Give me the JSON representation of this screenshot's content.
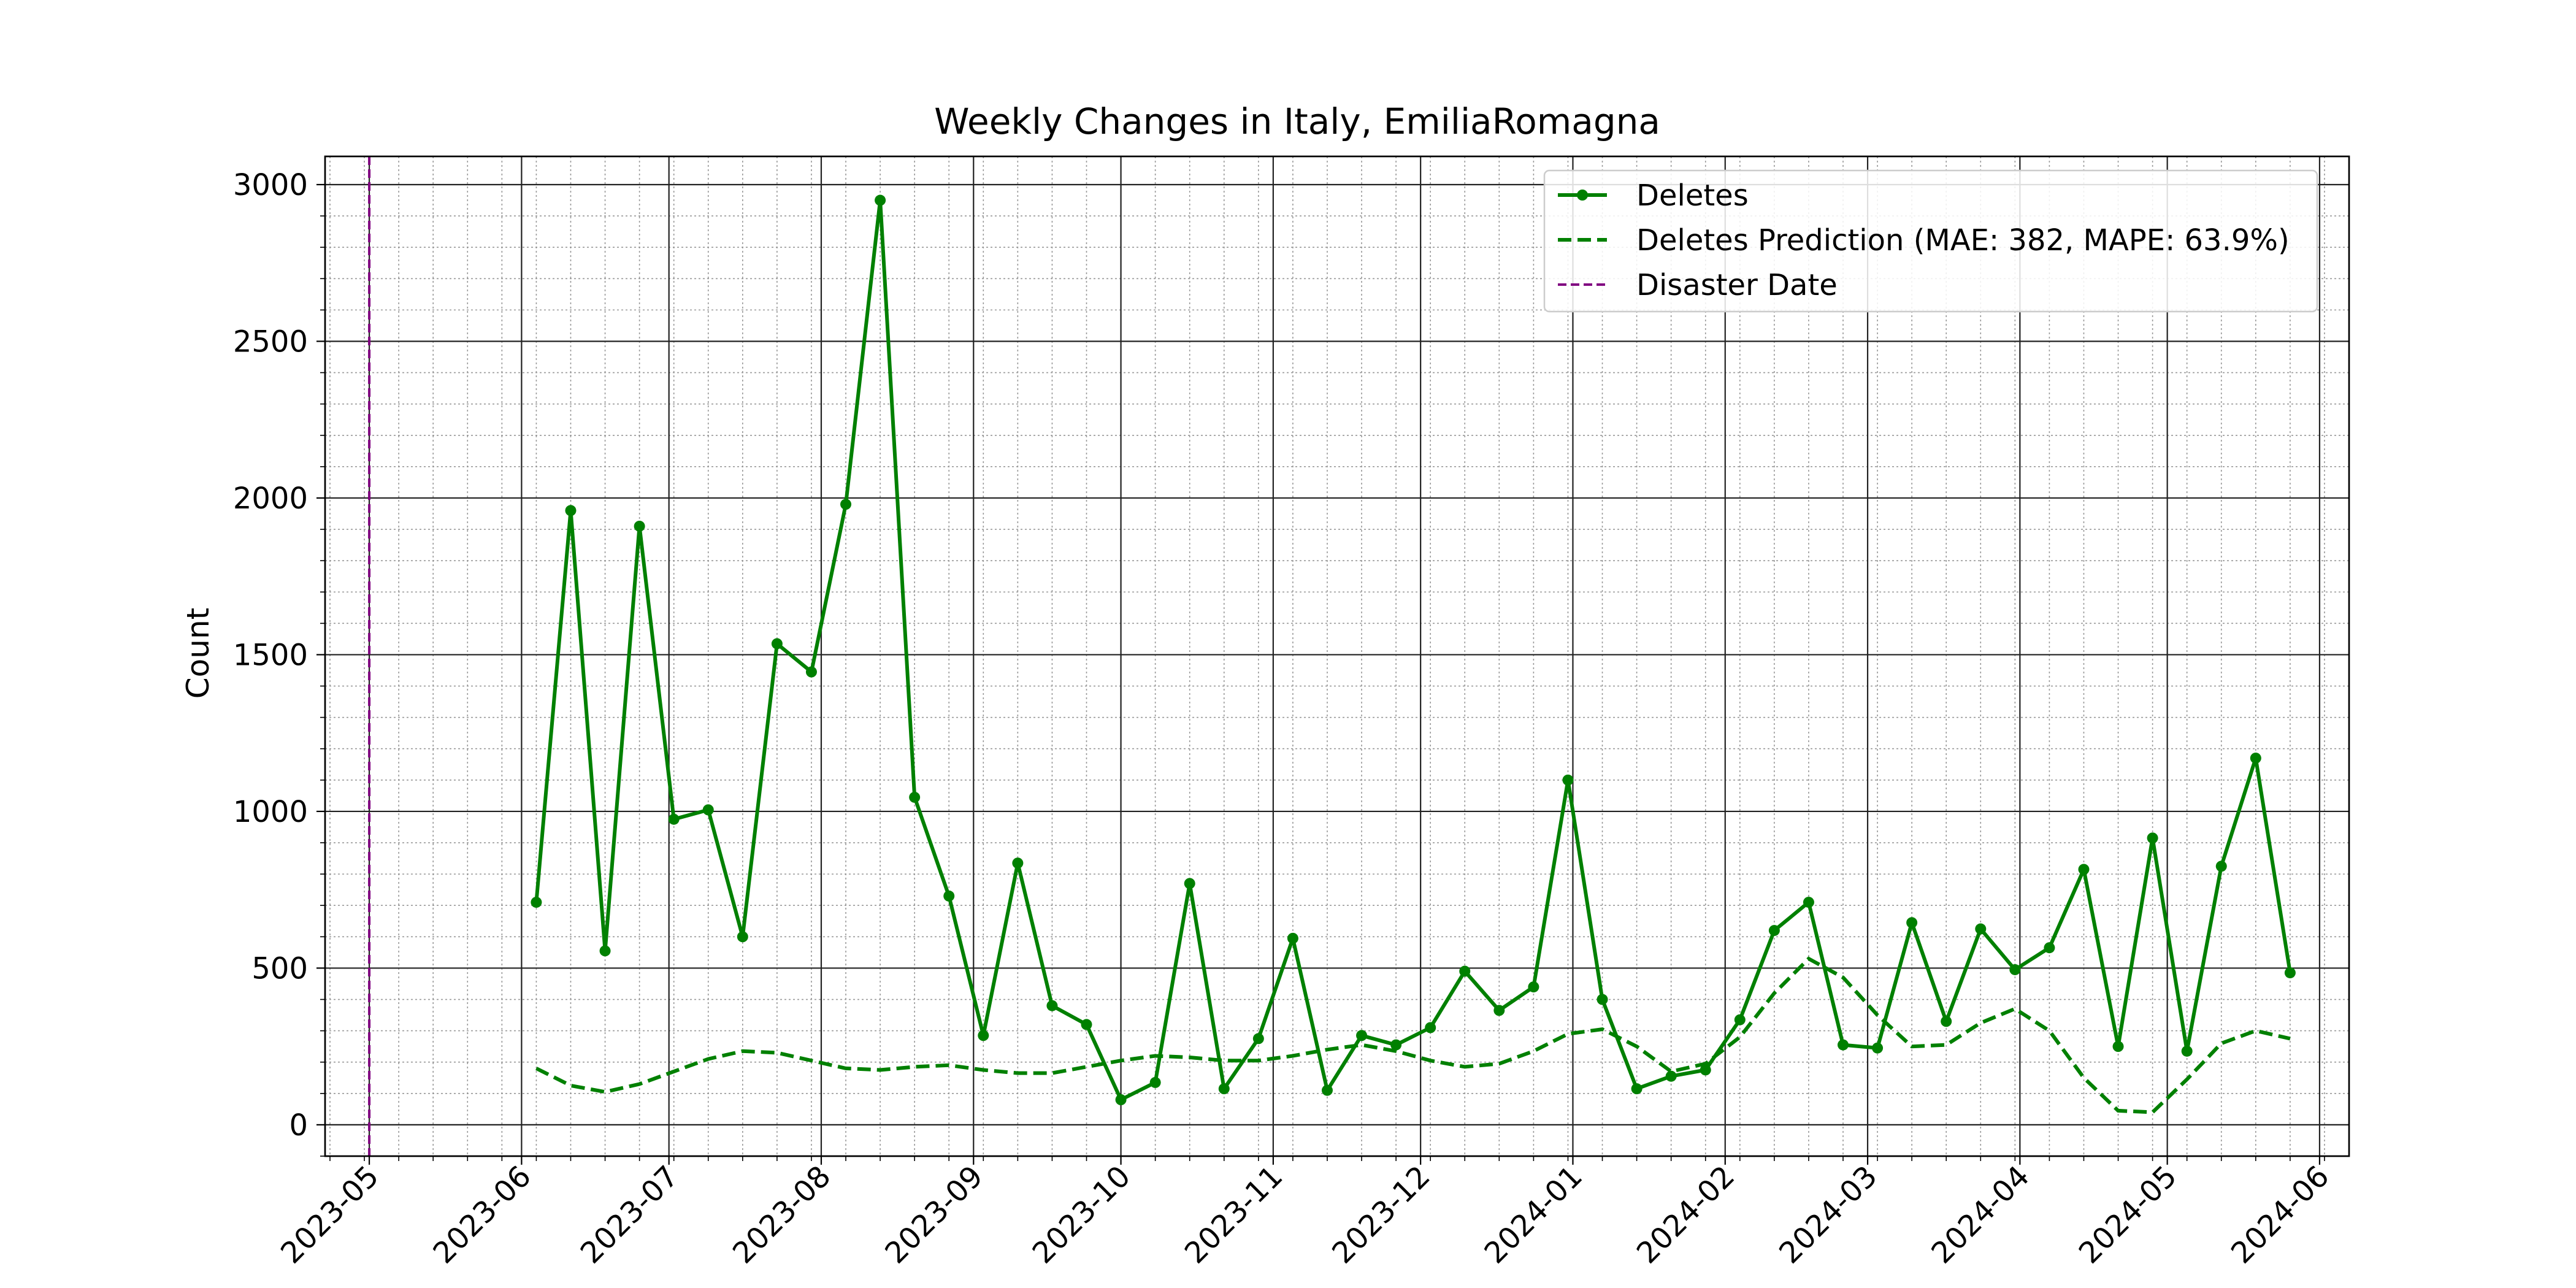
{
  "chart_data": {
    "type": "line",
    "title": "Weekly Changes in Italy, EmiliaRomagna",
    "xlabel": "",
    "ylabel": "Count",
    "ylim": [
      -100,
      3090
    ],
    "yticks": [
      0,
      500,
      1000,
      1500,
      2000,
      2500,
      3000
    ],
    "xlim": [
      "2023-04-22",
      "2024-06-07"
    ],
    "xticks": [
      "2023-05",
      "2023-06",
      "2023-07",
      "2023-08",
      "2023-09",
      "2023-10",
      "2023-11",
      "2023-12",
      "2024-01",
      "2024-02",
      "2024-03",
      "2024-04",
      "2024-05",
      "2024-06"
    ],
    "grid": true,
    "legend_position": "top-right",
    "disaster_date": "2023-05-01",
    "x": [
      "2023-06-04",
      "2023-06-11",
      "2023-06-18",
      "2023-06-25",
      "2023-07-02",
      "2023-07-09",
      "2023-07-16",
      "2023-07-23",
      "2023-07-30",
      "2023-08-06",
      "2023-08-13",
      "2023-08-20",
      "2023-08-27",
      "2023-09-03",
      "2023-09-10",
      "2023-09-17",
      "2023-09-24",
      "2023-10-01",
      "2023-10-08",
      "2023-10-15",
      "2023-10-22",
      "2023-10-29",
      "2023-11-05",
      "2023-11-12",
      "2023-11-19",
      "2023-11-26",
      "2023-12-03",
      "2023-12-10",
      "2023-12-17",
      "2023-12-24",
      "2023-12-31",
      "2024-01-07",
      "2024-01-14",
      "2024-01-21",
      "2024-01-28",
      "2024-02-04",
      "2024-02-11",
      "2024-02-18",
      "2024-02-25",
      "2024-03-03",
      "2024-03-10",
      "2024-03-17",
      "2024-03-24",
      "2024-03-31",
      "2024-04-07",
      "2024-04-14",
      "2024-04-21",
      "2024-04-28",
      "2024-05-05",
      "2024-05-12",
      "2024-05-19",
      "2024-05-26"
    ],
    "series": [
      {
        "name": "Deletes",
        "color": "#008000",
        "style": "solid-marker",
        "values": [
          710,
          1960,
          555,
          1910,
          975,
          1005,
          600,
          1535,
          1445,
          1980,
          2950,
          1045,
          730,
          285,
          835,
          380,
          320,
          80,
          135,
          770,
          115,
          275,
          595,
          110,
          285,
          255,
          310,
          490,
          365,
          440,
          1100,
          400,
          115,
          155,
          175,
          335,
          620,
          710,
          255,
          245,
          645,
          330,
          625,
          495,
          565,
          815,
          250,
          915,
          235,
          825,
          1170,
          485
        ]
      },
      {
        "name": "Deletes Prediction (MAE: 382, MAPE: 63.9%)",
        "color": "#008000",
        "style": "dashed",
        "values": [
          180,
          125,
          105,
          130,
          170,
          210,
          235,
          230,
          205,
          180,
          175,
          185,
          190,
          175,
          165,
          165,
          185,
          205,
          220,
          215,
          205,
          205,
          220,
          240,
          255,
          235,
          205,
          185,
          195,
          235,
          290,
          305,
          250,
          170,
          195,
          280,
          420,
          530,
          470,
          350,
          250,
          255,
          325,
          370,
          300,
          150,
          45,
          40,
          145,
          260,
          300,
          275
        ]
      }
    ],
    "legend": [
      {
        "label": "Deletes",
        "color": "#008000",
        "style": "solid-marker"
      },
      {
        "label": "Deletes Prediction (MAE: 382, MAPE: 63.9%)",
        "color": "#008000",
        "style": "dashed"
      },
      {
        "label": "Disaster Date",
        "color": "#800080",
        "style": "dashed"
      }
    ]
  }
}
